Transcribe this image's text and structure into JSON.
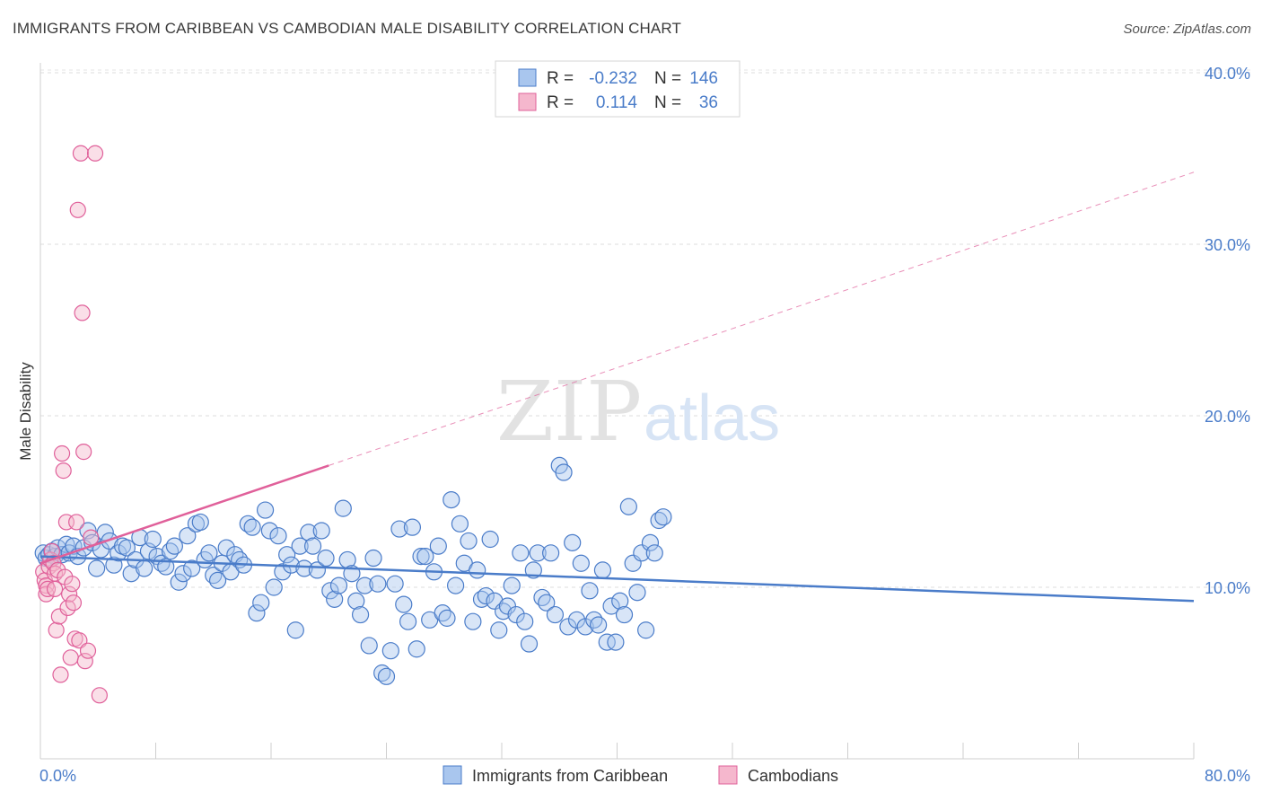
{
  "header": {
    "title": "IMMIGRANTS FROM CARIBBEAN VS CAMBODIAN MALE DISABILITY CORRELATION CHART",
    "source": "Source: ZipAtlas.com"
  },
  "watermark": {
    "zip": "ZIP",
    "atlas": "atlas"
  },
  "colors": {
    "blue": "#4a7cc9",
    "blue_fill": "#a9c6ee",
    "pink": "#e0609a",
    "pink_fill": "#f5b7cd"
  },
  "legend": {
    "rows": [
      {
        "r_label": "R =",
        "r_value": "-0.232",
        "n_label": "N =",
        "n_value": "146"
      },
      {
        "r_label": "R =",
        "r_value": "0.114",
        "n_label": "N =",
        "n_value": "36"
      }
    ]
  },
  "chart_data": {
    "type": "scatter",
    "title": "IMMIGRANTS FROM CARIBBEAN VS CAMBODIAN MALE DISABILITY CORRELATION CHART",
    "xlabel": "",
    "ylabel": "Male Disability",
    "xlim": [
      0,
      80
    ],
    "ylim": [
      0,
      42
    ],
    "x_tick_labels": [
      "0.0%",
      "80.0%"
    ],
    "y_ticks": [
      10,
      20,
      30,
      40
    ],
    "y_tick_labels": [
      "10.0%",
      "20.0%",
      "30.0%",
      "40.0%"
    ],
    "grid": "horizontal dashed",
    "legend_position": "top-center",
    "series": [
      {
        "name": "Immigrants from Caribbean",
        "r": -0.232,
        "n": 146,
        "trend": {
          "x": [
            0,
            80
          ],
          "y": [
            11.8,
            9.2
          ],
          "style": "solid"
        },
        "points": [
          [
            0.2,
            12.0
          ],
          [
            0.4,
            11.7
          ],
          [
            0.6,
            11.9
          ],
          [
            0.8,
            12.1
          ],
          [
            1.0,
            11.8
          ],
          [
            1.2,
            12.3
          ],
          [
            1.5,
            11.9
          ],
          [
            1.8,
            12.5
          ],
          [
            2.0,
            12.0
          ],
          [
            2.3,
            12.4
          ],
          [
            2.6,
            11.8
          ],
          [
            3.0,
            12.3
          ],
          [
            3.3,
            13.3
          ],
          [
            3.6,
            12.6
          ],
          [
            3.9,
            11.1
          ],
          [
            4.2,
            12.2
          ],
          [
            4.5,
            13.2
          ],
          [
            4.8,
            12.7
          ],
          [
            5.1,
            11.3
          ],
          [
            5.4,
            12.0
          ],
          [
            5.7,
            12.4
          ],
          [
            6.0,
            12.3
          ],
          [
            6.3,
            10.8
          ],
          [
            6.6,
            11.6
          ],
          [
            6.9,
            12.9
          ],
          [
            7.2,
            11.1
          ],
          [
            7.5,
            12.1
          ],
          [
            7.8,
            12.8
          ],
          [
            8.1,
            11.8
          ],
          [
            8.4,
            11.4
          ],
          [
            8.7,
            11.2
          ],
          [
            9.0,
            12.1
          ],
          [
            9.3,
            12.4
          ],
          [
            9.6,
            10.3
          ],
          [
            9.9,
            10.8
          ],
          [
            10.2,
            13.0
          ],
          [
            10.5,
            11.1
          ],
          [
            10.8,
            13.7
          ],
          [
            11.1,
            13.8
          ],
          [
            11.4,
            11.6
          ],
          [
            11.7,
            12.0
          ],
          [
            12.0,
            10.7
          ],
          [
            12.3,
            10.4
          ],
          [
            12.6,
            11.4
          ],
          [
            12.9,
            12.3
          ],
          [
            13.2,
            10.9
          ],
          [
            13.5,
            11.9
          ],
          [
            13.8,
            11.6
          ],
          [
            14.1,
            11.3
          ],
          [
            14.4,
            13.7
          ],
          [
            14.7,
            13.5
          ],
          [
            15.0,
            8.5
          ],
          [
            15.3,
            9.1
          ],
          [
            15.6,
            14.5
          ],
          [
            15.9,
            13.3
          ],
          [
            16.2,
            10.0
          ],
          [
            16.5,
            13.0
          ],
          [
            16.8,
            10.9
          ],
          [
            17.1,
            11.9
          ],
          [
            17.4,
            11.3
          ],
          [
            17.7,
            7.5
          ],
          [
            18.0,
            12.4
          ],
          [
            18.3,
            11.1
          ],
          [
            18.6,
            13.2
          ],
          [
            18.9,
            12.4
          ],
          [
            19.2,
            11.0
          ],
          [
            19.5,
            13.3
          ],
          [
            19.8,
            11.7
          ],
          [
            20.1,
            9.8
          ],
          [
            20.4,
            9.3
          ],
          [
            20.7,
            10.1
          ],
          [
            21.0,
            14.6
          ],
          [
            21.3,
            11.6
          ],
          [
            21.6,
            10.8
          ],
          [
            21.9,
            9.2
          ],
          [
            22.2,
            8.4
          ],
          [
            22.5,
            10.1
          ],
          [
            22.8,
            6.6
          ],
          [
            23.1,
            11.7
          ],
          [
            23.4,
            10.2
          ],
          [
            23.7,
            5.0
          ],
          [
            24.0,
            4.8
          ],
          [
            24.3,
            6.3
          ],
          [
            24.6,
            10.2
          ],
          [
            24.9,
            13.4
          ],
          [
            25.2,
            9.0
          ],
          [
            25.5,
            8.0
          ],
          [
            25.8,
            13.5
          ],
          [
            26.1,
            6.4
          ],
          [
            26.4,
            11.8
          ],
          [
            26.7,
            11.8
          ],
          [
            27.0,
            8.1
          ],
          [
            27.3,
            10.9
          ],
          [
            27.6,
            12.4
          ],
          [
            27.9,
            8.5
          ],
          [
            28.2,
            8.2
          ],
          [
            28.5,
            15.1
          ],
          [
            28.8,
            10.1
          ],
          [
            29.1,
            13.7
          ],
          [
            29.4,
            11.4
          ],
          [
            29.7,
            12.7
          ],
          [
            30.0,
            8.0
          ],
          [
            30.3,
            11.0
          ],
          [
            30.6,
            9.3
          ],
          [
            30.9,
            9.5
          ],
          [
            31.2,
            12.8
          ],
          [
            31.5,
            9.2
          ],
          [
            31.8,
            7.5
          ],
          [
            32.1,
            8.6
          ],
          [
            32.4,
            8.9
          ],
          [
            32.7,
            10.1
          ],
          [
            33.0,
            8.4
          ],
          [
            33.3,
            12.0
          ],
          [
            33.6,
            8.0
          ],
          [
            33.9,
            6.7
          ],
          [
            34.2,
            11.0
          ],
          [
            34.5,
            12.0
          ],
          [
            34.8,
            9.4
          ],
          [
            35.1,
            9.1
          ],
          [
            35.4,
            12.0
          ],
          [
            35.7,
            8.4
          ],
          [
            36.0,
            17.1
          ],
          [
            36.3,
            16.7
          ],
          [
            36.6,
            7.7
          ],
          [
            36.9,
            12.6
          ],
          [
            37.2,
            8.1
          ],
          [
            37.5,
            11.4
          ],
          [
            37.8,
            7.7
          ],
          [
            38.1,
            9.8
          ],
          [
            38.4,
            8.1
          ],
          [
            38.7,
            7.8
          ],
          [
            39.0,
            11.0
          ],
          [
            39.3,
            6.8
          ],
          [
            39.6,
            8.9
          ],
          [
            39.9,
            6.8
          ],
          [
            40.2,
            9.2
          ],
          [
            40.5,
            8.4
          ],
          [
            40.8,
            14.7
          ],
          [
            41.1,
            11.4
          ],
          [
            41.4,
            9.7
          ],
          [
            41.7,
            12.0
          ],
          [
            42.0,
            7.5
          ],
          [
            42.3,
            12.6
          ],
          [
            42.6,
            12.0
          ],
          [
            42.9,
            13.9
          ],
          [
            43.2,
            14.1
          ]
        ]
      },
      {
        "name": "Cambodians",
        "r": 0.114,
        "n": 36,
        "trend": {
          "x": [
            0,
            80
          ],
          "y": [
            11.4,
            34.2
          ],
          "solid_until_x": 20
        },
        "points": [
          [
            0.2,
            10.9
          ],
          [
            0.3,
            10.4
          ],
          [
            0.4,
            10.1
          ],
          [
            0.4,
            9.6
          ],
          [
            0.5,
            9.9
          ],
          [
            0.6,
            11.2
          ],
          [
            0.7,
            11.6
          ],
          [
            0.8,
            12.1
          ],
          [
            0.9,
            11.4
          ],
          [
            1.0,
            10.8
          ],
          [
            1.0,
            9.9
          ],
          [
            1.1,
            7.5
          ],
          [
            1.2,
            11.0
          ],
          [
            1.3,
            8.3
          ],
          [
            1.4,
            4.9
          ],
          [
            1.5,
            17.8
          ],
          [
            1.6,
            16.8
          ],
          [
            1.7,
            10.6
          ],
          [
            1.8,
            13.8
          ],
          [
            1.9,
            8.8
          ],
          [
            2.0,
            9.6
          ],
          [
            2.1,
            5.9
          ],
          [
            2.2,
            10.2
          ],
          [
            2.3,
            9.1
          ],
          [
            2.4,
            7.0
          ],
          [
            2.5,
            13.8
          ],
          [
            2.6,
            32.0
          ],
          [
            2.7,
            6.9
          ],
          [
            2.8,
            35.3
          ],
          [
            2.9,
            26.0
          ],
          [
            3.0,
            17.9
          ],
          [
            3.1,
            5.7
          ],
          [
            3.3,
            6.3
          ],
          [
            3.5,
            12.9
          ],
          [
            3.8,
            35.3
          ],
          [
            4.1,
            3.7
          ]
        ]
      }
    ]
  }
}
